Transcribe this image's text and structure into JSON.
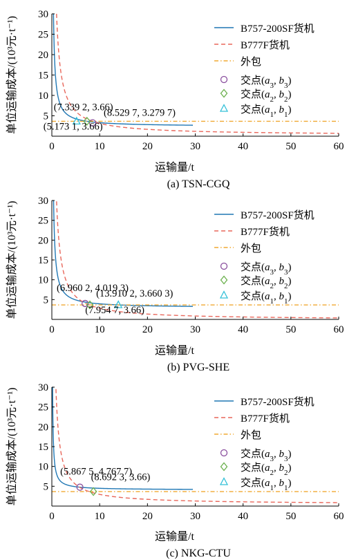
{
  "chart_data": [
    {
      "type": "line",
      "caption": "(a) TSN-CGQ",
      "xlabel": "运输量/t",
      "ylabel": "单位运输成本/(10³元·t⁻¹)",
      "xlim": [
        0,
        60
      ],
      "ylim": [
        0,
        30
      ],
      "xticks": [
        "0",
        "10",
        "20",
        "30",
        "40",
        "50",
        "60"
      ],
      "yticks": [
        "5",
        "10",
        "15",
        "20",
        "25",
        "30"
      ],
      "legend_position": "top-right",
      "series": [
        {
          "name": "B757-200SF货机",
          "style": "solid",
          "color": "#1f77b4",
          "x_range": [
            0.15,
            29.5
          ],
          "fixed_cost": 9.47,
          "variable_cost": 2.37
        },
        {
          "name": "B777F货机",
          "style": "dashed",
          "color": "#e8665a",
          "x_range": [
            0.5,
            60
          ],
          "fixed_cost": 29.3,
          "variable_cost": 0.22
        },
        {
          "name": "外包",
          "style": "dashdot",
          "color": "#f0a830",
          "constant": 3.66
        }
      ],
      "markers": [
        {
          "name": "交点(a3, b3)",
          "sub": "3",
          "shape": "circle",
          "color": "#8a4f9e",
          "x": 8.5297,
          "y": 3.2797
        },
        {
          "name": "交点(a2, b2)",
          "sub": "2",
          "shape": "diamond",
          "color": "#6ab04c",
          "x": 7.3392,
          "y": 3.66
        },
        {
          "name": "交点(a1, b1)",
          "sub": "1",
          "shape": "triangle",
          "color": "#33c0d8",
          "x": 5.1731,
          "y": 3.66
        }
      ],
      "annotations": [
        {
          "text": "(7.339 2, 3.66)",
          "anchor": "above-left"
        },
        {
          "text": "(8.529 7, 3.279 7)",
          "anchor": "above-right"
        },
        {
          "text": "(5.173 1, 3.66)",
          "anchor": "below"
        }
      ]
    },
    {
      "type": "line",
      "caption": "(b) PVG-SHE",
      "xlabel": "运输量/t",
      "ylabel": "单位运输成本/(10³元·t⁻¹)",
      "xlim": [
        0,
        60
      ],
      "ylim": [
        0,
        30
      ],
      "xticks": [
        "0",
        "10",
        "20",
        "30",
        "40",
        "50",
        "60"
      ],
      "yticks": [
        "5",
        "10",
        "15",
        "20",
        "25",
        "30"
      ],
      "legend_position": "top-right",
      "series": [
        {
          "name": "B757-200SF货机",
          "style": "solid",
          "color": "#1f77b4",
          "x_range": [
            0.2,
            29.5
          ],
          "fixed_cost": 9.8,
          "variable_cost": 2.955
        },
        {
          "name": "B777F货机",
          "style": "dashed",
          "color": "#e8665a",
          "x_range": [
            0.8,
            60
          ],
          "fixed_cost": 29.5,
          "variable_cost": -0.12
        },
        {
          "name": "外包",
          "style": "dashdot",
          "color": "#f0a830",
          "constant": 3.66
        }
      ],
      "markers": [
        {
          "name": "交点(a3, b3)",
          "sub": "3",
          "shape": "circle",
          "color": "#8a4f9e",
          "x": 6.9602,
          "y": 4.0193
        },
        {
          "name": "交点(a2, b2)",
          "sub": "2",
          "shape": "diamond",
          "color": "#6ab04c",
          "x": 7.9547,
          "y": 3.66
        },
        {
          "name": "交点(a1, b1)",
          "sub": "1",
          "shape": "triangle",
          "color": "#33c0d8",
          "x": 13.9102,
          "y": 3.6603
        }
      ],
      "annotations": [
        {
          "text": "(6.960 2, 4.019 3)",
          "anchor": "above-left"
        },
        {
          "text": "(13.910 2, 3.660 3)",
          "anchor": "above-right"
        },
        {
          "text": "(7.954 7, 3.66)",
          "anchor": "below"
        }
      ]
    },
    {
      "type": "line",
      "caption": "(c) NKG-CTU",
      "xlabel": "运输量/t",
      "ylabel": "单位运输成本/(10³元·t⁻¹)",
      "xlim": [
        0,
        60
      ],
      "ylim": [
        0,
        30
      ],
      "xticks": [
        "0",
        "10",
        "20",
        "30",
        "40",
        "50",
        "60"
      ],
      "yticks": [
        "5",
        "10",
        "15",
        "20",
        "25",
        "30"
      ],
      "legend_position": "top-right",
      "series": [
        {
          "name": "B757-200SF货机",
          "style": "solid",
          "color": "#1f77b4",
          "x_range": [
            0.15,
            29.5
          ],
          "fixed_cost": 4.0,
          "variable_cost": 4.08
        },
        {
          "name": "B777F货机",
          "style": "dashed",
          "color": "#e8665a",
          "x_range": [
            0.5,
            60
          ],
          "fixed_cost": 25.0,
          "variable_cost": 0.45
        },
        {
          "name": "外包",
          "style": "dashdot",
          "color": "#f0a830",
          "constant": 3.66
        }
      ],
      "markers": [
        {
          "name": "交点(a3, b3)",
          "sub": "3",
          "shape": "circle",
          "color": "#8a4f9e",
          "x": 5.8675,
          "y": 4.7677
        },
        {
          "name": "交点(a2, b2)",
          "sub": "2",
          "shape": "diamond",
          "color": "#6ab04c",
          "x": 8.6923,
          "y": 3.66
        }
      ],
      "annotations": [
        {
          "text": "(5.867 5, 4.767 7)",
          "anchor": "above-left"
        },
        {
          "text": "(8.692 3, 3.66)",
          "anchor": "above-right"
        }
      ],
      "legend_extra": [
        {
          "name": "交点(a1, b1)",
          "sub": "1",
          "shape": "triangle",
          "color": "#33c0d8"
        }
      ]
    }
  ]
}
